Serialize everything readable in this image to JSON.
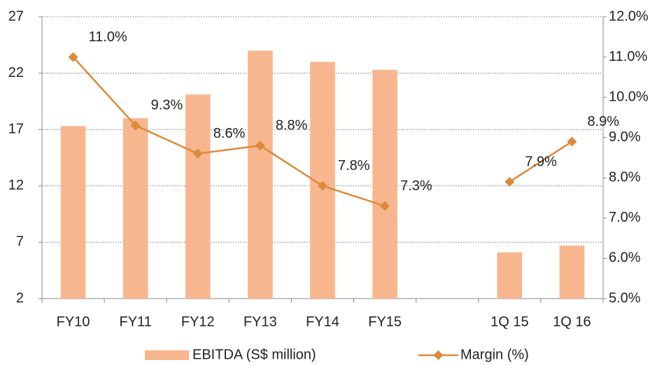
{
  "chart_data": {
    "type": "bar",
    "categories": [
      "FY10",
      "FY11",
      "FY12",
      "FY13",
      "FY14",
      "FY15",
      null,
      "1Q 15",
      "1Q 16"
    ],
    "series": [
      {
        "name": "EBITDA (S$ million)",
        "type": "bar",
        "color": "#f8b68f",
        "values": [
          17.3,
          18.0,
          20.1,
          24.0,
          23.0,
          22.3,
          null,
          6.1,
          6.7
        ]
      },
      {
        "name": "Margin (%)",
        "type": "line",
        "axis": "y2",
        "color": "#dc8a3a",
        "values": [
          11.0,
          9.3,
          8.6,
          8.8,
          7.8,
          7.3,
          null,
          7.9,
          8.9
        ],
        "value_labels": [
          "11.0%",
          "9.3%",
          "8.6%",
          "8.8%",
          "7.8%",
          "7.3%",
          null,
          "7.9%",
          "8.9%"
        ]
      }
    ],
    "ylim": [
      2,
      27
    ],
    "yticks": [
      2,
      7,
      12,
      17,
      22,
      27
    ],
    "y2lim": [
      5.0,
      12.0
    ],
    "y2ticks": [
      {
        "value": 5.0,
        "label": "5.0%"
      },
      {
        "value": 6.0,
        "label": "6.0%"
      },
      {
        "value": 7.0,
        "label": "7.0%"
      },
      {
        "value": 8.0,
        "label": "8.0%"
      },
      {
        "value": 9.0,
        "label": "9.0%"
      },
      {
        "value": 10.0,
        "label": "10.0%"
      },
      {
        "value": 11.0,
        "label": "11.0%"
      },
      {
        "value": 12.0,
        "label": "12.0%"
      }
    ],
    "grid": true,
    "legend": "bottom"
  }
}
